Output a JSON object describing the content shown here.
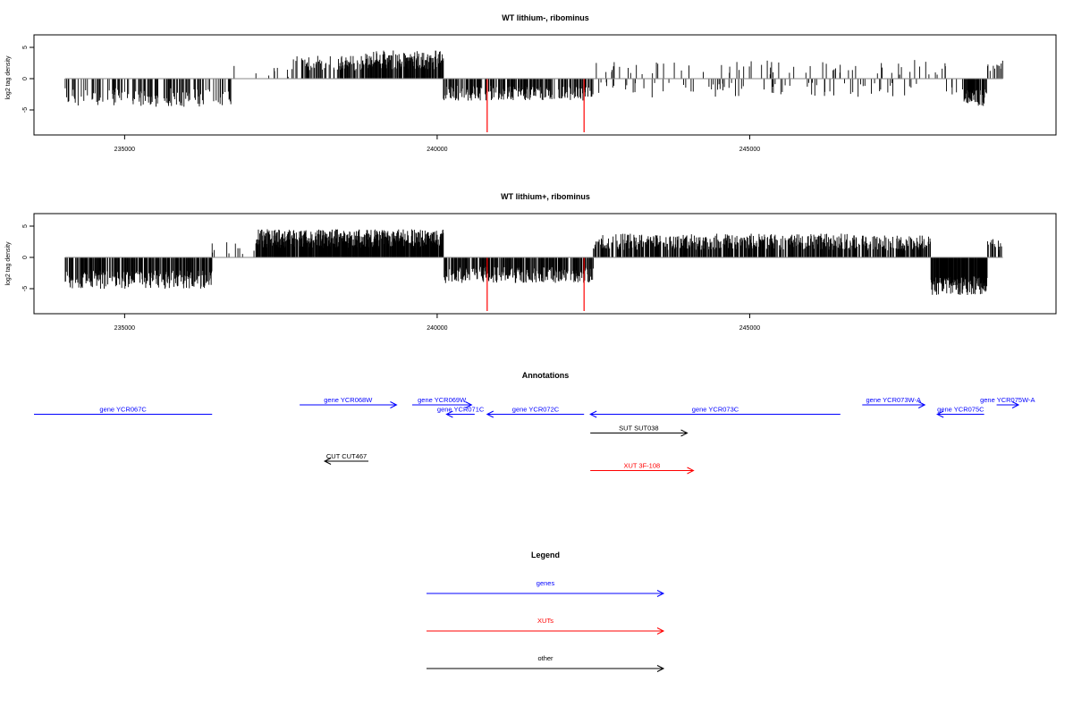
{
  "chart_data": [
    {
      "type": "bar",
      "title": "WT lithium-, ribominus",
      "ylabel": "log2 tag density",
      "xlabel": "",
      "xlim": [
        233550,
        249900
      ],
      "ylim": [
        -9,
        7
      ],
      "x_ticks": [
        235000,
        240000,
        245000
      ],
      "y_ticks": [
        5,
        0,
        -5
      ],
      "x_tick_labels": [
        "235000",
        "240000",
        "245000"
      ],
      "y_tick_labels": [
        "5",
        "0",
        "-5"
      ],
      "baseline": 0,
      "baseline_extent": [
        234050,
        249050
      ],
      "bar_color": "#000000",
      "highlight_color": "#ff0000",
      "highlights": [
        {
          "x": 240800,
          "y": -9
        },
        {
          "x": 242350,
          "y": -9
        }
      ],
      "segments": [
        {
          "start": 234050,
          "end": 236700,
          "sign": -1,
          "level": 3.0,
          "spread": 1.5,
          "density": 0.3
        },
        {
          "start": 236700,
          "end": 237700,
          "sign": 1,
          "level": 1.2,
          "spread": 1.5,
          "density": 0.06
        },
        {
          "start": 237700,
          "end": 238800,
          "sign": 1,
          "level": 2.5,
          "spread": 1.2,
          "density": 0.35
        },
        {
          "start": 238800,
          "end": 240100,
          "sign": 1,
          "level": 3.0,
          "spread": 1.5,
          "density": 0.7
        },
        {
          "start": 240100,
          "end": 242500,
          "sign": -1,
          "level": 2.3,
          "spread": 1.2,
          "density": 0.45
        },
        {
          "start": 242500,
          "end": 248400,
          "sign": 0,
          "level": 1.8,
          "spread": 1.2,
          "density": 0.12
        },
        {
          "start": 248400,
          "end": 248800,
          "sign": -1,
          "level": 3.0,
          "spread": 1.5,
          "density": 0.7
        },
        {
          "start": 248800,
          "end": 249050,
          "sign": 1,
          "level": 2.0,
          "spread": 1.0,
          "density": 0.3
        }
      ]
    },
    {
      "type": "bar",
      "title": "WT lithium+, ribominus",
      "ylabel": "log2 tag density",
      "xlabel": "",
      "xlim": [
        233550,
        249900
      ],
      "ylim": [
        -9,
        7
      ],
      "x_ticks": [
        235000,
        240000,
        245000
      ],
      "y_ticks": [
        5,
        0,
        -5
      ],
      "x_tick_labels": [
        "235000",
        "240000",
        "245000"
      ],
      "y_tick_labels": [
        "5",
        "0",
        "-5"
      ],
      "baseline": 0,
      "baseline_extent": [
        234050,
        249050
      ],
      "bar_color": "#000000",
      "highlight_color": "#ff0000",
      "highlights": [
        {
          "x": 240800,
          "y": -9
        },
        {
          "x": 242350,
          "y": -9
        }
      ],
      "segments": [
        {
          "start": 234050,
          "end": 236400,
          "sign": -1,
          "level": 3.5,
          "spread": 1.5,
          "density": 0.6
        },
        {
          "start": 236400,
          "end": 237100,
          "sign": 1,
          "level": 1.5,
          "spread": 1.0,
          "density": 0.08
        },
        {
          "start": 237100,
          "end": 240100,
          "sign": 1,
          "level": 3.0,
          "spread": 1.5,
          "density": 0.9
        },
        {
          "start": 240100,
          "end": 242500,
          "sign": -1,
          "level": 2.8,
          "spread": 1.3,
          "density": 0.6
        },
        {
          "start": 242500,
          "end": 246700,
          "sign": 1,
          "level": 2.5,
          "spread": 1.3,
          "density": 0.6
        },
        {
          "start": 246700,
          "end": 247900,
          "sign": 1,
          "level": 2.3,
          "spread": 1.2,
          "density": 0.5
        },
        {
          "start": 247900,
          "end": 248800,
          "sign": -1,
          "level": 4.5,
          "spread": 1.5,
          "density": 0.9
        },
        {
          "start": 248800,
          "end": 249050,
          "sign": 1,
          "level": 2.0,
          "spread": 1.0,
          "density": 0.3
        }
      ]
    }
  ],
  "annotations": {
    "title": "Annotations",
    "xlim": [
      233550,
      249900
    ],
    "items": [
      {
        "label": "gene YCR067C",
        "start": 233550,
        "end": 236400,
        "strand": "none",
        "row": 1,
        "color": "#0000ff"
      },
      {
        "label": "gene YCR068W",
        "start": 237800,
        "end": 239350,
        "strand": "+",
        "row": 0,
        "color": "#0000ff"
      },
      {
        "label": "gene YCR069W",
        "start": 239600,
        "end": 240550,
        "strand": "+",
        "row": 0,
        "color": "#0000ff"
      },
      {
        "label": "gene YCR071C",
        "start": 240150,
        "end": 240600,
        "strand": "-",
        "row": 1,
        "color": "#0000ff"
      },
      {
        "label": "gene YCR072C",
        "start": 240800,
        "end": 242350,
        "strand": "-",
        "row": 1,
        "color": "#0000ff"
      },
      {
        "label": "gene YCR073C",
        "start": 242450,
        "end": 246450,
        "strand": "-",
        "row": 1,
        "color": "#0000ff"
      },
      {
        "label": "gene YCR073W-A",
        "start": 246800,
        "end": 247800,
        "strand": "+",
        "row": 0,
        "color": "#0000ff"
      },
      {
        "label": "gene YCR075C",
        "start": 248000,
        "end": 248750,
        "strand": "-",
        "row": 1,
        "color": "#0000ff"
      },
      {
        "label": "gene YCR075W-A",
        "start": 248950,
        "end": 249300,
        "strand": "+",
        "row": 0,
        "color": "#0000ff"
      },
      {
        "label": "SUT SUT038",
        "start": 242450,
        "end": 244000,
        "strand": "+",
        "row": 3,
        "color": "#000000"
      },
      {
        "label": "CUT CUT467",
        "start": 238200,
        "end": 238900,
        "strand": "-",
        "row": 6,
        "color": "#000000"
      },
      {
        "label": "XUT 3F-108",
        "start": 242450,
        "end": 244100,
        "strand": "+",
        "row": 7,
        "color": "#ff0000"
      }
    ]
  },
  "legend": {
    "title": "Legend",
    "items": [
      {
        "label": "genes",
        "color": "#0000ff"
      },
      {
        "label": "XUTs",
        "color": "#ff0000"
      },
      {
        "label": "other",
        "color": "#000000"
      }
    ]
  }
}
